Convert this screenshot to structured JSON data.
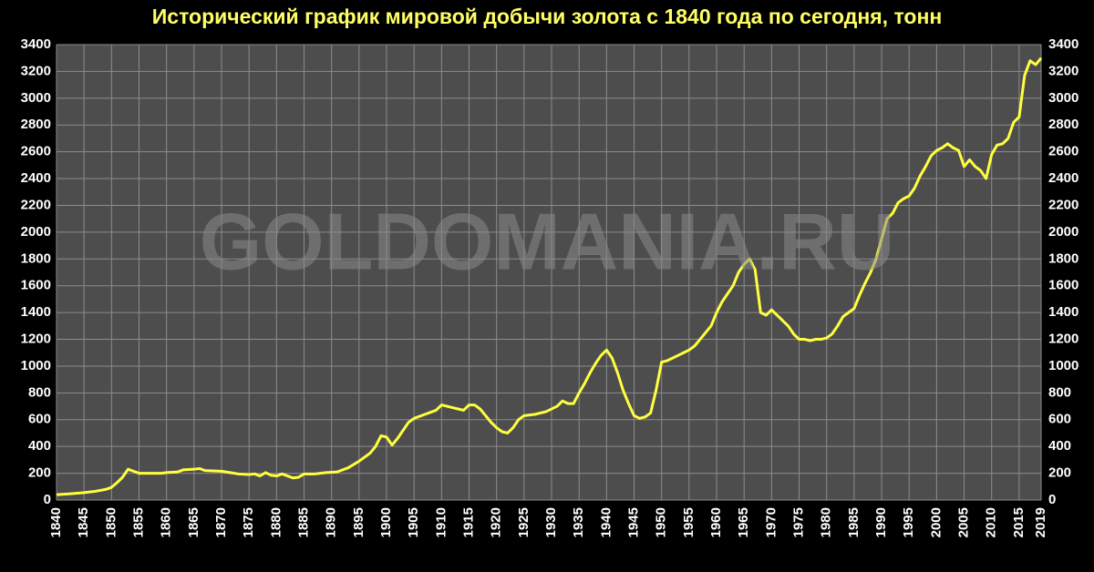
{
  "chart_data": {
    "type": "line",
    "title": "Исторический график мировой добычи золота с 1840 года по сегодня, тонн",
    "watermark": "GOLDOMANIA.RU",
    "color": "#ffff40",
    "grid": true,
    "x": [
      1840,
      1842,
      1845,
      1847,
      1849,
      1850,
      1851,
      1852,
      1853,
      1854,
      1855,
      1857,
      1859,
      1860,
      1862,
      1863,
      1865,
      1866,
      1867,
      1870,
      1873,
      1875,
      1876,
      1877,
      1878,
      1879,
      1880,
      1881,
      1882,
      1883,
      1884,
      1885,
      1887,
      1889,
      1891,
      1893,
      1895,
      1897,
      1898,
      1899,
      1900,
      1901,
      1902,
      1903,
      1904,
      1905,
      1907,
      1909,
      1910,
      1911,
      1912,
      1913,
      1914,
      1915,
      1916,
      1917,
      1918,
      1919,
      1920,
      1921,
      1922,
      1923,
      1924,
      1925,
      1927,
      1929,
      1931,
      1932,
      1933,
      1934,
      1935,
      1936,
      1937,
      1938,
      1939,
      1940,
      1941,
      1942,
      1943,
      1944,
      1945,
      1946,
      1947,
      1948,
      1949,
      1950,
      1951,
      1952,
      1953,
      1954,
      1955,
      1956,
      1957,
      1958,
      1959,
      1960,
      1961,
      1962,
      1963,
      1964,
      1965,
      1966,
      1967,
      1968,
      1969,
      1970,
      1971,
      1972,
      1973,
      1974,
      1975,
      1976,
      1977,
      1978,
      1979,
      1980,
      1981,
      1982,
      1983,
      1984,
      1985,
      1986,
      1987,
      1988,
      1989,
      1990,
      1991,
      1992,
      1993,
      1994,
      1995,
      1996,
      1997,
      1998,
      1999,
      2000,
      2001,
      2002,
      2003,
      2004,
      2005,
      2006,
      2007,
      2008,
      2009,
      2010,
      2011,
      2012,
      2013,
      2014,
      2015,
      2016,
      2017,
      2018,
      2019
    ],
    "values": [
      40,
      45,
      55,
      65,
      80,
      95,
      130,
      170,
      230,
      215,
      200,
      200,
      200,
      205,
      210,
      225,
      230,
      235,
      220,
      215,
      195,
      190,
      195,
      180,
      205,
      185,
      180,
      195,
      180,
      165,
      170,
      195,
      195,
      205,
      210,
      240,
      290,
      350,
      400,
      480,
      470,
      410,
      460,
      520,
      580,
      610,
      640,
      670,
      710,
      700,
      690,
      680,
      670,
      710,
      710,
      680,
      630,
      580,
      540,
      510,
      500,
      540,
      600,
      630,
      640,
      660,
      700,
      740,
      720,
      720,
      800,
      870,
      950,
      1020,
      1080,
      1120,
      1060,
      950,
      820,
      720,
      630,
      610,
      620,
      650,
      820,
      1030,
      1040,
      1060,
      1080,
      1100,
      1120,
      1150,
      1200,
      1250,
      1300,
      1400,
      1480,
      1540,
      1600,
      1700,
      1760,
      1800,
      1720,
      1400,
      1380,
      1420,
      1380,
      1340,
      1300,
      1240,
      1200,
      1200,
      1190,
      1200,
      1200,
      1210,
      1240,
      1300,
      1370,
      1400,
      1430,
      1530,
      1620,
      1700,
      1800,
      1950,
      2100,
      2140,
      2220,
      2250,
      2270,
      2330,
      2420,
      2490,
      2570,
      2610,
      2630,
      2660,
      2630,
      2610,
      2490,
      2540,
      2490,
      2460,
      2400,
      2580,
      2650,
      2660,
      2700,
      2820,
      2860,
      3170,
      3280,
      3250,
      3300
    ],
    "xlim": [
      1840,
      2019
    ],
    "xticks": [
      1840,
      1845,
      1850,
      1855,
      1860,
      1865,
      1870,
      1875,
      1880,
      1885,
      1890,
      1895,
      1900,
      1905,
      1910,
      1915,
      1920,
      1925,
      1930,
      1935,
      1940,
      1945,
      1950,
      1955,
      1960,
      1965,
      1970,
      1975,
      1980,
      1985,
      1990,
      1995,
      2000,
      2005,
      2010,
      2015,
      2019
    ],
    "ylim": [
      0,
      3400
    ],
    "yticks": [
      0,
      200,
      400,
      600,
      800,
      1000,
      1200,
      1400,
      1600,
      1800,
      2000,
      2200,
      2400,
      2600,
      2800,
      3000,
      3200,
      3400
    ]
  }
}
